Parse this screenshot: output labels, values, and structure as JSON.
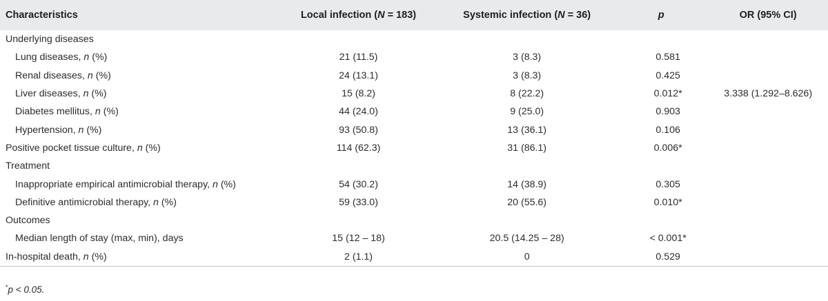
{
  "header": {
    "characteristics": "Characteristics",
    "local_label": "Local infection (",
    "local_n": "N",
    "local_val": " = 183)",
    "systemic_label": "Systemic infection (",
    "systemic_n": "N",
    "systemic_val": " = 36)",
    "p": "p",
    "or": "OR (95% CI)"
  },
  "rows": [
    {
      "label": "Underlying diseases",
      "n_suffix": false,
      "local": "",
      "systemic": "",
      "p": "",
      "or": ""
    },
    {
      "label": "Lung diseases, ",
      "n_suffix": true,
      "suffix": " (%)",
      "local": "21 (11.5)",
      "systemic": "3 (8.3)",
      "p": "0.581",
      "or": ""
    },
    {
      "label": "Renal diseases, ",
      "n_suffix": true,
      "suffix": " (%)",
      "local": "24 (13.1)",
      "systemic": "3 (8.3)",
      "p": "0.425",
      "or": ""
    },
    {
      "label": "Liver diseases, ",
      "n_suffix": true,
      "suffix": " (%)",
      "local": "15 (8.2)",
      "systemic": "8 (22.2)",
      "p": "0.012*",
      "or": "3.338 (1.292–8.626)"
    },
    {
      "label": "Diabetes mellitus, ",
      "n_suffix": true,
      "suffix": " (%)",
      "local": "44 (24.0)",
      "systemic": "9 (25.0)",
      "p": "0.903",
      "or": ""
    },
    {
      "label": "Hypertension, ",
      "n_suffix": true,
      "suffix": " (%)",
      "local": "93 (50.8)",
      "systemic": "13 (36.1)",
      "p": "0.106",
      "or": ""
    },
    {
      "label": "Positive pocket tissue culture, ",
      "n_suffix": true,
      "suffix": " (%)",
      "local": "114 (62.3)",
      "systemic": "31 (86.1)",
      "p": "0.006*",
      "or": ""
    },
    {
      "label": "Treatment",
      "n_suffix": false,
      "local": "",
      "systemic": "",
      "p": "",
      "or": ""
    },
    {
      "label": "Inappropriate empirical antimicrobial therapy, ",
      "n_suffix": true,
      "suffix": " (%)",
      "local": "54 (30.2)",
      "systemic": "14 (38.9)",
      "p": "0.305",
      "or": ""
    },
    {
      "label": "Definitive antimicrobial therapy, ",
      "n_suffix": true,
      "suffix": " (%)",
      "local": "59 (33.0)",
      "systemic": "20 (55.6)",
      "p": "0.010*",
      "or": ""
    },
    {
      "label": "Outcomes",
      "n_suffix": false,
      "local": "",
      "systemic": "",
      "p": "",
      "or": ""
    },
    {
      "label": "Median length of stay (max, min), days",
      "n_suffix": false,
      "local": "15 (12 – 18)",
      "systemic": "20.5 (14.25 – 28)",
      "p": "< 0.001*",
      "or": ""
    },
    {
      "label": "In-hospital death, ",
      "n_suffix": true,
      "suffix": " (%)",
      "local": "2 (1.1)",
      "systemic": "0",
      "p": "0.529",
      "or": ""
    }
  ],
  "n_symbol": "n",
  "footnote": {
    "star": "*",
    "text": "p < 0.05."
  }
}
